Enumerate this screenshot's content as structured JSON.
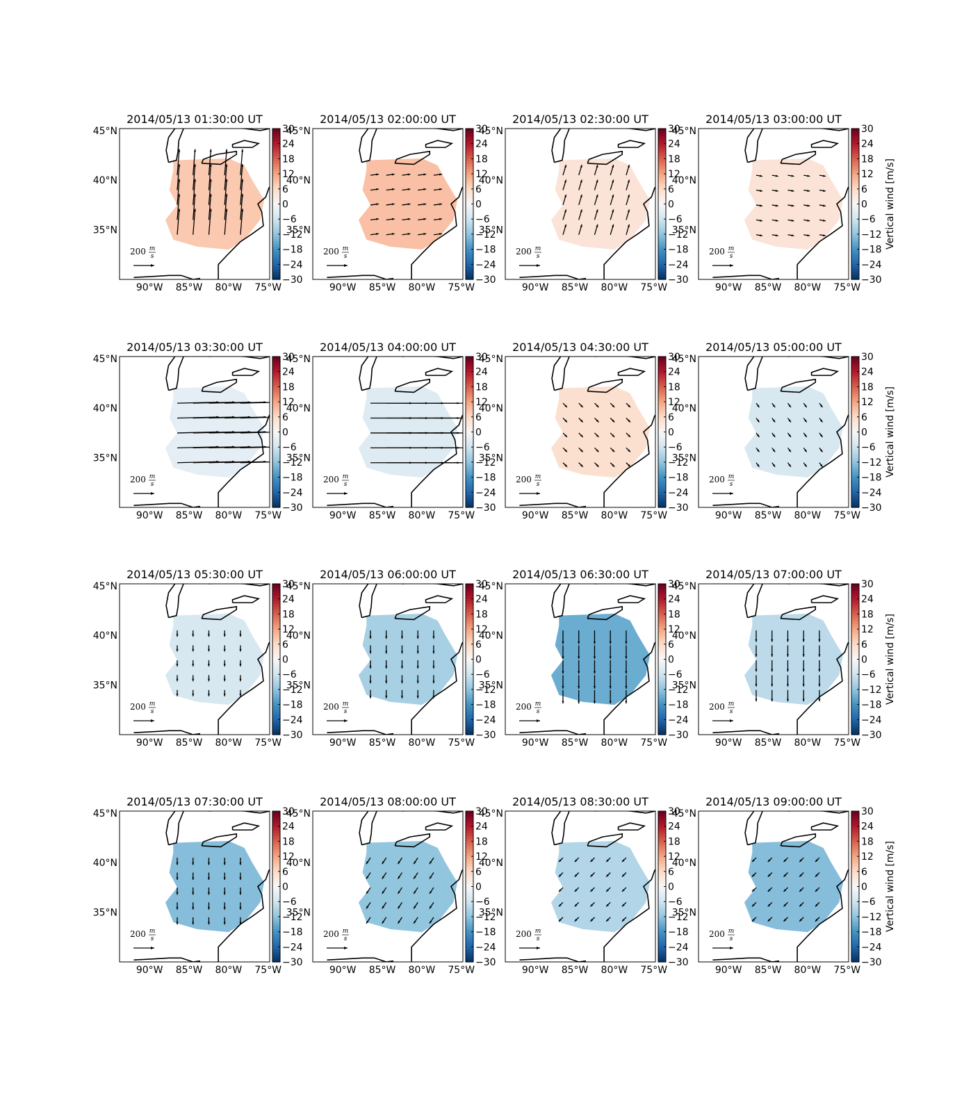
{
  "chart_data": {
    "type": "map",
    "xlim": [
      -93.8,
      -74.8
    ],
    "ylim": [
      30,
      45.2
    ],
    "xticks": [
      {
        "value": -90,
        "label": "90°W"
      },
      {
        "value": -85,
        "label": "85°W"
      },
      {
        "value": -80,
        "label": "80°W"
      },
      {
        "value": -75,
        "label": "75°W"
      }
    ],
    "yticks": [
      {
        "value": 45,
        "label": "45°N"
      },
      {
        "value": 40,
        "label": "40°N"
      },
      {
        "value": 35,
        "label": "35°N"
      }
    ],
    "colorbar": {
      "label": "Vertical wind [m/s]",
      "clim": [
        -30,
        30
      ],
      "ticks": [
        30,
        24,
        18,
        12,
        6,
        0,
        {
          "value": -6,
          "label": "−6"
        },
        {
          "value": -12,
          "label": "−12"
        },
        {
          "value": -18,
          "label": "−18"
        },
        {
          "value": -24,
          "label": "−24"
        },
        {
          "value": -30,
          "label": "−30"
        }
      ]
    },
    "scale": {
      "value": 200,
      "unit_num": "m",
      "unit_den": "s"
    },
    "panels": [
      {
        "title": "2014/05/13 01:30:00 UT",
        "value": 8,
        "u": 20,
        "v": 250
      },
      {
        "title": "2014/05/13 02:00:00 UT",
        "value": 9,
        "u": 80,
        "v": 10
      },
      {
        "title": "2014/05/13 02:30:00 UT",
        "value": 4,
        "u": 30,
        "v": 100
      },
      {
        "title": "2014/05/13 03:00:00 UT",
        "value": 4,
        "u": 60,
        "v": -10
      },
      {
        "title": "2014/05/13 03:30:00 UT",
        "value": -3,
        "u": 400,
        "v": 10
      },
      {
        "title": "2014/05/13 04:00:00 UT",
        "value": -4,
        "u": 400,
        "v": 0
      },
      {
        "title": "2014/05/13 04:30:00 UT",
        "value": 5,
        "u": 40,
        "v": -40
      },
      {
        "title": "2014/05/13 05:00:00 UT",
        "value": -5,
        "u": 30,
        "v": -40
      },
      {
        "title": "2014/05/13 05:30:00 UT",
        "value": -5,
        "u": 0,
        "v": -60
      },
      {
        "title": "2014/05/13 06:00:00 UT",
        "value": -10,
        "u": 0,
        "v": -80
      },
      {
        "title": "2014/05/13 06:30:00 UT",
        "value": -15,
        "u": 0,
        "v": -130
      },
      {
        "title": "2014/05/13 07:00:00 UT",
        "value": -8,
        "u": 0,
        "v": -110
      },
      {
        "title": "2014/05/13 07:30:00 UT",
        "value": -13,
        "u": 0,
        "v": -70
      },
      {
        "title": "2014/05/13 08:00:00 UT",
        "value": -12,
        "u": -40,
        "v": -60
      },
      {
        "title": "2014/05/13 08:30:00 UT",
        "value": -9,
        "u": -40,
        "v": -40
      },
      {
        "title": "2014/05/13 09:00:00 UT",
        "value": -13,
        "u": -40,
        "v": -40
      }
    ]
  }
}
